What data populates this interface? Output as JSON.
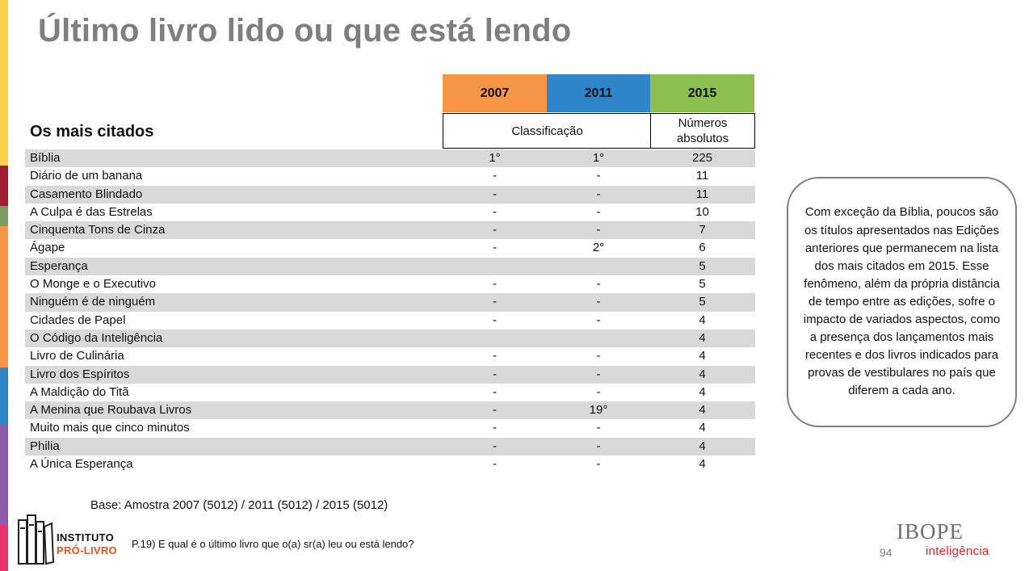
{
  "title": "Último livro lido ou que está lendo",
  "colors": {
    "year_2007": "#f79646",
    "year_2011": "#2e86c9",
    "year_2015": "#8cbf4f",
    "row_shade": "#d9d9d9",
    "strip": [
      "#fbd14b",
      "#9e1b32",
      "#7a9b62",
      "#f79646",
      "#2e86c9",
      "#8b5ba7",
      "#e8336d"
    ]
  },
  "table": {
    "section_heading": "Os mais citados",
    "years": [
      "2007",
      "2011",
      "2015"
    ],
    "sub_headers": {
      "classification": "Classificação",
      "absolute_numbers": "Números absolutos"
    },
    "rows": [
      {
        "title": "Bíblia",
        "y2007": "1°",
        "y2011": "1°",
        "y2015": "225"
      },
      {
        "title": "Diário de um banana",
        "y2007": "-",
        "y2011": "-",
        "y2015": "11"
      },
      {
        "title": "Casamento Blindado",
        "y2007": "-",
        "y2011": "-",
        "y2015": "11"
      },
      {
        "title": "A Culpa é das Estrelas",
        "y2007": "-",
        "y2011": "-",
        "y2015": "10"
      },
      {
        "title": "Cinquenta Tons de Cinza",
        "y2007": "-",
        "y2011": "-",
        "y2015": "7"
      },
      {
        "title": "Ágape",
        "y2007": "-",
        "y2011": "2°",
        "y2015": "6"
      },
      {
        "title": "Esperança",
        "y2007": "",
        "y2011": "",
        "y2015": "5"
      },
      {
        "title": "O Monge e o Executivo",
        "y2007": "-",
        "y2011": "-",
        "y2015": "5"
      },
      {
        "title": "Ninguém é de ninguém",
        "y2007": "-",
        "y2011": "-",
        "y2015": "5"
      },
      {
        "title": "Cidades de Papel",
        "y2007": "-",
        "y2011": "-",
        "y2015": "4"
      },
      {
        "title": "O Código da Inteligência",
        "y2007": "",
        "y2011": "",
        "y2015": "4"
      },
      {
        "title": "Livro de Culinária",
        "y2007": "-",
        "y2011": "-",
        "y2015": "4"
      },
      {
        "title": "Livro dos Espíritos",
        "y2007": "-",
        "y2011": "-",
        "y2015": "4"
      },
      {
        "title": "A Maldição do Titã",
        "y2007": "-",
        "y2011": "-",
        "y2015": "4"
      },
      {
        "title": "A Menina que Roubava Livros",
        "y2007": "-",
        "y2011": "19°",
        "y2015": "4"
      },
      {
        "title": "Muito mais que cinco minutos",
        "y2007": "-",
        "y2011": "-",
        "y2015": "4"
      },
      {
        "title": "Philia",
        "y2007": "-",
        "y2011": "-",
        "y2015": "4"
      },
      {
        "title": "A Única Esperança",
        "y2007": "-",
        "y2011": "-",
        "y2015": "4"
      }
    ]
  },
  "callout_text": "Com exceção da Bíblia, poucos são os títulos apresentados nas Edições anteriores que permanecem na lista dos mais citados em 2015. Esse fenômeno, além da própria distância de tempo entre as edições, sofre o impacto de variados aspectos, como a presença dos lançamentos mais recentes e dos livros indicados para provas de vestibulares no país que diferem a cada ano.",
  "base_note": "Base: Amostra  2007 (5012) / 2011 (5012) / 2015 (5012)",
  "question_note": "P.19) E qual é o último livro que o(a) sr(a) leu ou está lendo?",
  "page_number": "94",
  "logos": {
    "left": {
      "line1": "INSTITUTO",
      "line2": "PRÓ-LIVRO",
      "icon": "books-icon"
    },
    "right": {
      "word": "IBOPE",
      "sub": "inteligência"
    }
  }
}
